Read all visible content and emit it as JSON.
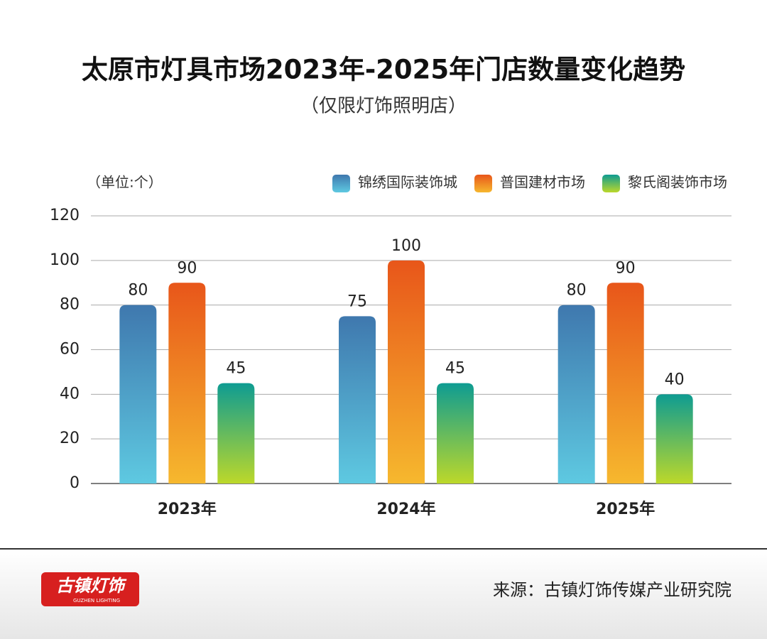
{
  "chart_data": {
    "type": "bar",
    "title": "太原市灯具市场2023年-2025年门店数量变化趋势",
    "subtitle": "（仅限灯饰照明店）",
    "unit_label": "（单位:个）",
    "categories": [
      "2023年",
      "2024年",
      "2025年"
    ],
    "series": [
      {
        "name": "锦绣国际装饰城",
        "color": "#3f78ae",
        "gradient": [
          "#3f78ae",
          "#5ec9e1"
        ],
        "values": [
          80,
          75,
          80
        ]
      },
      {
        "name": "普国建材市场",
        "color": "#e8561a",
        "gradient": [
          "#e8561a",
          "#f6b82e"
        ],
        "values": [
          90,
          100,
          90
        ]
      },
      {
        "name": "黎氏阁装饰市场",
        "color": "#0e9c92",
        "gradient": [
          "#0e9c92",
          "#bcd82a"
        ],
        "values": [
          45,
          45,
          40
        ]
      }
    ],
    "ylim": [
      0,
      120
    ],
    "yticks": [
      0,
      20,
      40,
      60,
      80,
      100,
      120
    ],
    "grid": true,
    "legend": "top-right"
  },
  "footer": {
    "logo_text": "古镇灯饰",
    "logo_subtext": "GUZHEN LIGHTING",
    "source": "来源：古镇灯饰传媒产业研究院"
  }
}
